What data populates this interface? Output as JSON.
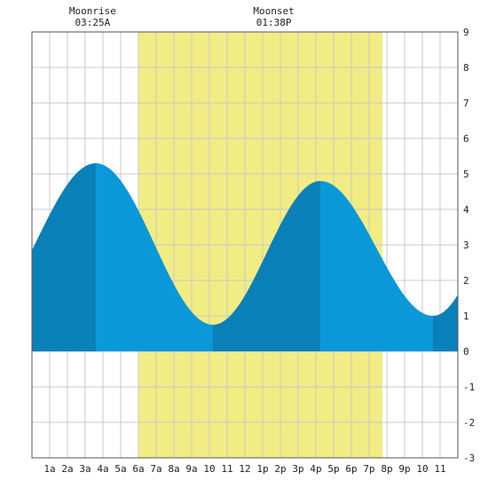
{
  "chart_data": {
    "type": "area",
    "title": "",
    "xlabel": "",
    "ylabel": "",
    "x_range_hours": [
      0,
      24
    ],
    "ylim": [
      -3,
      9
    ],
    "y_ticks": [
      -3,
      -2,
      -1,
      0,
      1,
      2,
      3,
      4,
      5,
      6,
      7,
      8,
      9
    ],
    "x_tick_labels": [
      "1a",
      "2a",
      "3a",
      "4a",
      "5a",
      "6a",
      "7a",
      "8a",
      "9a",
      "10",
      "11",
      "12",
      "1p",
      "2p",
      "3p",
      "4p",
      "5p",
      "6p",
      "7p",
      "8p",
      "9p",
      "10",
      "11"
    ],
    "grid": true,
    "daylight": {
      "start": "06:00",
      "end": "19:45",
      "color": "#f2ec85"
    },
    "moon_events": [
      {
        "label": "Moonrise",
        "time": "03:25A",
        "hour": 3.42
      },
      {
        "label": "Moonset",
        "time": "01:38P",
        "hour": 13.63
      }
    ],
    "tide_extremes": [
      {
        "type": "high",
        "hour": 3.6,
        "height": 5.3
      },
      {
        "type": "low",
        "hour": 10.2,
        "height": 0.75
      },
      {
        "type": "high",
        "hour": 16.25,
        "height": 4.8
      },
      {
        "type": "low",
        "hour": 22.6,
        "height": 1.0
      }
    ],
    "tide_start": {
      "hour": 0,
      "height": 2.85
    },
    "tide_end": {
      "hour": 24,
      "height": 1.6
    },
    "colors": {
      "rising": "#0a80b8",
      "falling": "#0a98d8",
      "grid": "#c8c8c8",
      "frame": "#555555"
    }
  }
}
